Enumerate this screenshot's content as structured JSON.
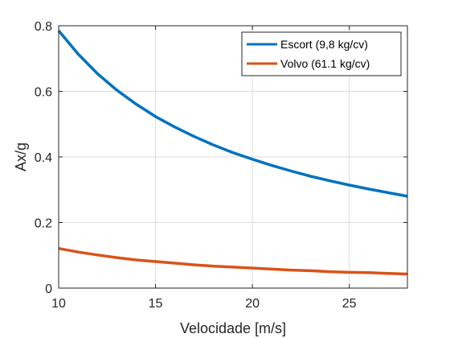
{
  "chart_data": {
    "type": "line",
    "title": "",
    "xlabel": "Velocidade [m/s]",
    "ylabel": "Ax/g",
    "xlim": [
      10,
      28
    ],
    "ylim": [
      0,
      0.8
    ],
    "xticks": [
      10,
      15,
      20,
      25
    ],
    "yticks": [
      0,
      0.2,
      0.4,
      0.6,
      0.8
    ],
    "xtick_labels": [
      "10",
      "15",
      "20",
      "25"
    ],
    "ytick_labels": [
      "0",
      "0.2",
      "0.4",
      "0.6",
      "0.8"
    ],
    "grid": true,
    "legend_position": "top-right",
    "x": [
      10,
      11,
      12,
      13,
      14,
      15,
      16,
      17,
      18,
      19,
      20,
      21,
      22,
      23,
      24,
      25,
      26,
      27,
      28
    ],
    "series": [
      {
        "name": "Escort (9,8 kg/cv)",
        "color": "#0072BD",
        "values": [
          0.785,
          0.714,
          0.654,
          0.604,
          0.561,
          0.523,
          0.491,
          0.462,
          0.436,
          0.413,
          0.393,
          0.374,
          0.357,
          0.341,
          0.327,
          0.314,
          0.302,
          0.291,
          0.28
        ]
      },
      {
        "name": "Volvo (61.1 kg/cv)",
        "color": "#D95319",
        "values": [
          0.121,
          0.11,
          0.101,
          0.093,
          0.086,
          0.081,
          0.076,
          0.071,
          0.067,
          0.064,
          0.061,
          0.058,
          0.055,
          0.053,
          0.05,
          0.048,
          0.047,
          0.045,
          0.043
        ]
      }
    ]
  }
}
